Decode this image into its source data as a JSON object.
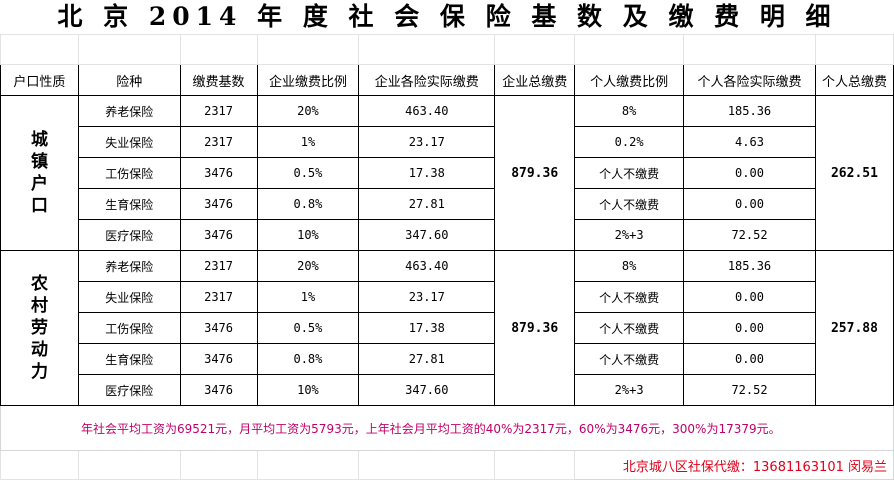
{
  "title": "北 京 2014 年 度 社 会 保 险 基 数 及 缴 费 明 细",
  "headers": [
    "户口性质",
    "险种",
    "缴费基数",
    "企业缴费比例",
    "企业各险实际缴费",
    "企业总缴费",
    "个人缴费比例",
    "个人各险实际缴费",
    "个人总缴费"
  ],
  "groups": [
    {
      "label_chars": [
        "城",
        "镇",
        "户",
        "口"
      ],
      "enterprise_total": "879.36",
      "personal_total": "262.51",
      "rows": [
        {
          "type": "养老保险",
          "base": "2317",
          "ent_ratio": "20%",
          "ent_pay": "463.40",
          "per_ratio": "8%",
          "per_pay": "185.36"
        },
        {
          "type": "失业保险",
          "base": "2317",
          "ent_ratio": "1%",
          "ent_pay": "23.17",
          "per_ratio": "0.2%",
          "per_pay": "4.63"
        },
        {
          "type": "工伤保险",
          "base": "3476",
          "ent_ratio": "0.5%",
          "ent_pay": "17.38",
          "per_ratio": "个人不缴费",
          "per_pay": "0.00"
        },
        {
          "type": "生育保险",
          "base": "3476",
          "ent_ratio": "0.8%",
          "ent_pay": "27.81",
          "per_ratio": "个人不缴费",
          "per_pay": "0.00"
        },
        {
          "type": "医疗保险",
          "base": "3476",
          "ent_ratio": "10%",
          "ent_pay": "347.60",
          "per_ratio": "2%+3",
          "per_pay": "72.52"
        }
      ]
    },
    {
      "label_chars": [
        "农",
        "村",
        "劳",
        "动",
        "力"
      ],
      "enterprise_total": "879.36",
      "personal_total": "257.88",
      "rows": [
        {
          "type": "养老保险",
          "base": "2317",
          "ent_ratio": "20%",
          "ent_pay": "463.40",
          "per_ratio": "8%",
          "per_pay": "185.36"
        },
        {
          "type": "失业保险",
          "base": "2317",
          "ent_ratio": "1%",
          "ent_pay": "23.17",
          "per_ratio": "个人不缴费",
          "per_pay": "0.00"
        },
        {
          "type": "工伤保险",
          "base": "3476",
          "ent_ratio": "0.5%",
          "ent_pay": "17.38",
          "per_ratio": "个人不缴费",
          "per_pay": "0.00"
        },
        {
          "type": "生育保险",
          "base": "3476",
          "ent_ratio": "0.8%",
          "ent_pay": "27.81",
          "per_ratio": "个人不缴费",
          "per_pay": "0.00"
        },
        {
          "type": "医疗保险",
          "base": "3476",
          "ent_ratio": "10%",
          "ent_pay": "347.60",
          "per_ratio": "2%+3",
          "per_pay": "72.52"
        }
      ]
    }
  ],
  "note": "年社会平均工资为69521元，月平均工资为5793元，上年社会月平均工资的40%为2317元，60%为3476元，300%为17379元。",
  "contact": "北京城八区社保代缴：13681163101 闵易兰",
  "colors": {
    "note": "#c0006a",
    "contact": "#e0001a"
  }
}
